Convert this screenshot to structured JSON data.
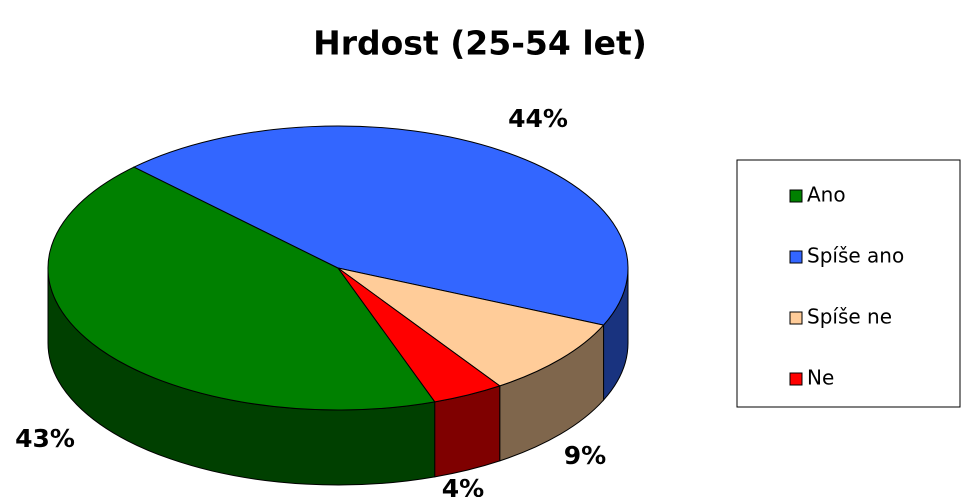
{
  "chart_data": {
    "type": "pie",
    "title": "Hrdost (25-54 let)",
    "categories": [
      "Ano",
      "Spíše ano",
      "Spíše ne",
      "Ne"
    ],
    "values": [
      43,
      44,
      9,
      4
    ],
    "value_labels": [
      "43%",
      "44%",
      "9%",
      "4%"
    ],
    "colors": [
      "#008000",
      "#3366ff",
      "#ffcc99",
      "#ff0000"
    ],
    "legend": "right"
  }
}
